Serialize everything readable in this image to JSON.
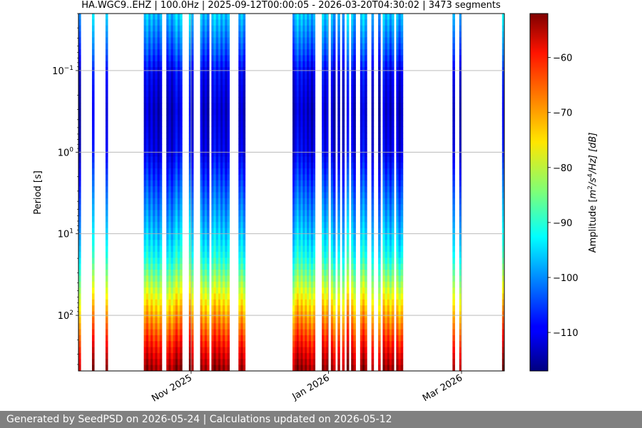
{
  "chart_data": {
    "type": "heatmap",
    "title": "HA.WGC9..EHZ | 100.0Hz | 2025-09-12T00:00:05 - 2026-03-20T04:30:02 | 3473 segments",
    "ylabel": "Period [s]",
    "colorbar_label": "Amplitude [m²/s⁴/Hz] [dB]",
    "colorbar_label_parts": {
      "prefix": "Amplitude [",
      "m": "m",
      "two": "2",
      "s": "/s",
      "four": "4",
      "suffix": "/Hz] [dB]"
    },
    "x_range": [
      "2025-09-12",
      "2026-03-20"
    ],
    "x_ticks": [
      {
        "date": "2025-11-01",
        "label": "Nov 2025"
      },
      {
        "date": "2026-01-01",
        "label": "Jan 2026"
      },
      {
        "date": "2026-03-01",
        "label": "Mar 2026"
      }
    ],
    "y_scale": "log",
    "y_axis_inverted": true,
    "y_range": [
      0.02,
      480
    ],
    "y_ticks": [
      {
        "value": 0.1,
        "base": "10",
        "exp": "−1"
      },
      {
        "value": 1,
        "base": "10",
        "exp": "0"
      },
      {
        "value": 10,
        "base": "10",
        "exp": "1"
      },
      {
        "value": 100,
        "base": "10",
        "exp": "2"
      }
    ],
    "colorbar_range": [
      -117,
      -52
    ],
    "colorbar_ticks": [
      {
        "value": -60,
        "label": "−60"
      },
      {
        "value": -70,
        "label": "−70"
      },
      {
        "value": -80,
        "label": "−80"
      },
      {
        "value": -90,
        "label": "−90"
      },
      {
        "value": -100,
        "label": "−100"
      },
      {
        "value": -110,
        "label": "−110"
      }
    ],
    "colormap": "jet",
    "grid": true,
    "data_columns": [
      {
        "start": "2025-09-12",
        "end": "2025-09-13"
      },
      {
        "start": "2025-09-18",
        "end": "2025-09-19"
      },
      {
        "start": "2025-09-24",
        "end": "2025-09-25"
      },
      {
        "start": "2025-10-11",
        "end": "2025-10-19"
      },
      {
        "start": "2025-10-21",
        "end": "2025-10-28"
      },
      {
        "start": "2025-10-31",
        "end": "2025-11-02"
      },
      {
        "start": "2025-11-05",
        "end": "2025-11-09"
      },
      {
        "start": "2025-11-10",
        "end": "2025-11-18"
      },
      {
        "start": "2025-11-22",
        "end": "2025-11-25"
      },
      {
        "start": "2025-12-16",
        "end": "2025-12-26"
      },
      {
        "start": "2025-12-29",
        "end": "2026-01-01"
      },
      {
        "start": "2026-01-02",
        "end": "2026-01-04"
      },
      {
        "start": "2026-01-05",
        "end": "2026-01-06"
      },
      {
        "start": "2026-01-07",
        "end": "2026-01-08"
      },
      {
        "start": "2026-01-09",
        "end": "2026-01-10"
      },
      {
        "start": "2026-01-11",
        "end": "2026-01-13"
      },
      {
        "start": "2026-01-15",
        "end": "2026-01-18"
      },
      {
        "start": "2026-01-20",
        "end": "2026-01-21"
      },
      {
        "start": "2026-01-23",
        "end": "2026-01-24"
      },
      {
        "start": "2026-01-25",
        "end": "2026-01-30"
      },
      {
        "start": "2026-01-31",
        "end": "2026-02-03"
      },
      {
        "start": "2026-02-25",
        "end": "2026-02-26"
      },
      {
        "start": "2026-02-28",
        "end": "2026-03-01"
      },
      {
        "start": "2026-03-19",
        "end": "2026-03-20"
      }
    ],
    "spectrum_profile": [
      {
        "period": 0.02,
        "db": -96
      },
      {
        "period": 0.06,
        "db": -104
      },
      {
        "period": 0.1,
        "db": -109
      },
      {
        "period": 0.3,
        "db": -112
      },
      {
        "period": 1,
        "db": -110
      },
      {
        "period": 3,
        "db": -103
      },
      {
        "period": 10,
        "db": -96
      },
      {
        "period": 20,
        "db": -91
      },
      {
        "period": 40,
        "db": -82
      },
      {
        "period": 80,
        "db": -73
      },
      {
        "period": 150,
        "db": -66
      },
      {
        "period": 250,
        "db": -60
      },
      {
        "period": 480,
        "db": -53
      }
    ]
  },
  "footer": {
    "text": "Generated by SeedPSD on 2026-05-24 | Calculations updated on 2026-05-12"
  }
}
